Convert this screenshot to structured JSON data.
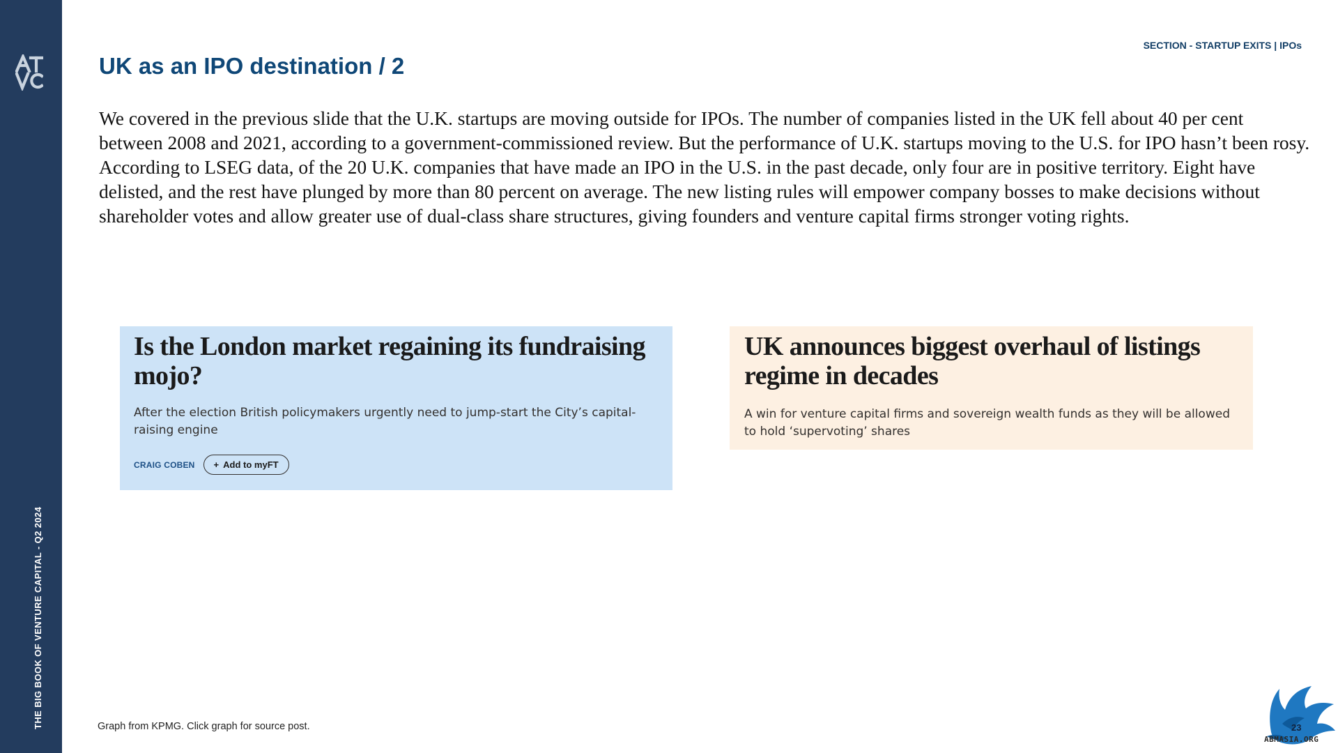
{
  "sidebar": {
    "vertical_label": "THE BIG BOOK OF VENTURE CAPITAL - Q2 2024",
    "logo_icon": "atvc-logo"
  },
  "header": {
    "section": "SECTION - STARTUP EXITS | IPOs",
    "title": "UK as an IPO destination / 2"
  },
  "body": {
    "paragraph": "We covered in the previous slide that the U.K. startups are moving outside for IPOs. The number of companies listed in the UK fell about 40 per cent between 2008 and 2021, according to a government-commissioned review. But the performance of U.K. startups moving to the U.S. for IPO hasn’t been rosy. According to LSEG data, of the 20 U.K. companies that have made an IPO in the U.S. in the past decade, only four are in positive territory. Eight have delisted, and the rest have plunged by more than 80 percent on average. The new listing rules will empower company bosses to make decisions without shareholder votes and allow greater use of dual-class share structures, giving founders and venture capital firms stronger voting rights."
  },
  "cards": [
    {
      "headline": "Is the London market regaining its fundraising mojo?",
      "standfirst": "After the election British policymakers urgently need to jump-start the City’s capital-raising engine",
      "author": "CRAIG COBEN",
      "button_label": "Add to myFT",
      "background": "#cde3f7"
    },
    {
      "headline": "UK announces biggest overhaul of listings regime in decades",
      "standfirst": "A win for venture capital firms and sovereign wealth funds as they will be allowed to hold ‘supervoting’ shares",
      "background": "#fdf0e2"
    }
  ],
  "footer": {
    "note": "Graph from KPMG. Click graph for source post.",
    "badge_number": "23",
    "watermark": "ABMASIA.ORG",
    "badge_icon": "eagle-icon"
  },
  "colors": {
    "sidebar": "#233c5e",
    "title": "#0f4777",
    "author": "#1c4f85"
  }
}
